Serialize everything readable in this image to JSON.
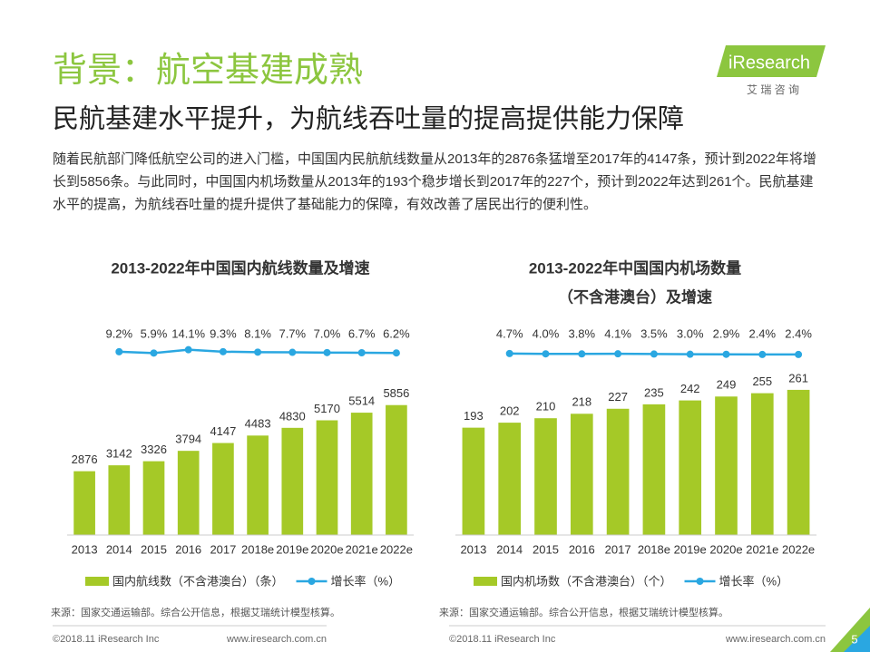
{
  "header": {
    "title": "背景：航空基建成熟",
    "subtitle": "民航基建水平提升，为航线吞吐量的提高提供能力保障",
    "paragraph": "随着民航部门降低航空公司的进入门槛，中国国内民航航线数量从2013年的2876条猛增至2017年的4147条，预计到2022年将增长到5856条。与此同时，中国国内机场数量从2013年的193个稳步增长到2017年的227个，预计到2022年达到261个。民航基建水平的提高，为航线吞吐量的提升提供了基础能力的保障，有效改善了居民出行的便利性。",
    "logo": "iResearch",
    "logo_sub": "艾 瑞 咨 询"
  },
  "chart_data": [
    {
      "type": "bar",
      "title": [
        "2013-2022年中国国内航线数量及增速"
      ],
      "categories": [
        "2013",
        "2014",
        "2015",
        "2016",
        "2017",
        "2018e",
        "2019e",
        "2020e",
        "2021e",
        "2022e"
      ],
      "series": [
        {
          "name": "国内航线数（不含港澳台）（条）",
          "color": "#a5c927",
          "values": [
            2876,
            3142,
            3326,
            3794,
            4147,
            4483,
            4830,
            5170,
            5514,
            5856
          ]
        },
        {
          "name": "增长率（%）",
          "color": "#2aa7e1",
          "type": "line",
          "axis": "y2",
          "values": [
            null,
            9.2,
            5.9,
            14.1,
            9.3,
            8.1,
            7.7,
            7.0,
            6.7,
            6.2
          ],
          "value_labels": [
            null,
            "9.2%",
            "5.9%",
            "14.1%",
            "9.3%",
            "8.1%",
            "7.7%",
            "7.0%",
            "6.7%",
            "6.2%"
          ]
        }
      ],
      "ylim": [
        0,
        9400
      ],
      "y2lim": [
        -40,
        60
      ],
      "source": "来源：国家交通运输部。综合公开信息，根据艾瑞统计模型核算。"
    },
    {
      "type": "bar",
      "title": [
        "2013-2022年中国国内机场数量",
        "（不含港澳台）及增速"
      ],
      "categories": [
        "2013",
        "2014",
        "2015",
        "2016",
        "2017",
        "2018e",
        "2019e",
        "2020e",
        "2021e",
        "2022e"
      ],
      "series": [
        {
          "name": "国内机场数（不含港澳台）（个）",
          "color": "#a5c927",
          "values": [
            193,
            202,
            210,
            218,
            227,
            235,
            242,
            249,
            255,
            261
          ]
        },
        {
          "name": "增长率（%）",
          "color": "#2aa7e1",
          "type": "line",
          "axis": "y2",
          "values": [
            null,
            4.7,
            4.0,
            3.8,
            4.1,
            3.5,
            3.0,
            2.9,
            2.4,
            2.4
          ],
          "value_labels": [
            null,
            "4.7%",
            "4.0%",
            "3.8%",
            "4.1%",
            "3.5%",
            "3.0%",
            "2.9%",
            "2.4%",
            "2.4%"
          ]
        }
      ],
      "ylim": [
        0,
        375
      ],
      "y2lim": [
        -40,
        60
      ],
      "source": "来源：国家交通运输部。综合公开信息，根据艾瑞统计模型核算。"
    }
  ],
  "footer": {
    "copyright": "©2018.11 iResearch Inc",
    "url": "www.iresearch.com.cn",
    "copyright_2": "©2018.11 iResearch Inc",
    "url_2": "www.iresearch.com.cn",
    "page": "5"
  }
}
